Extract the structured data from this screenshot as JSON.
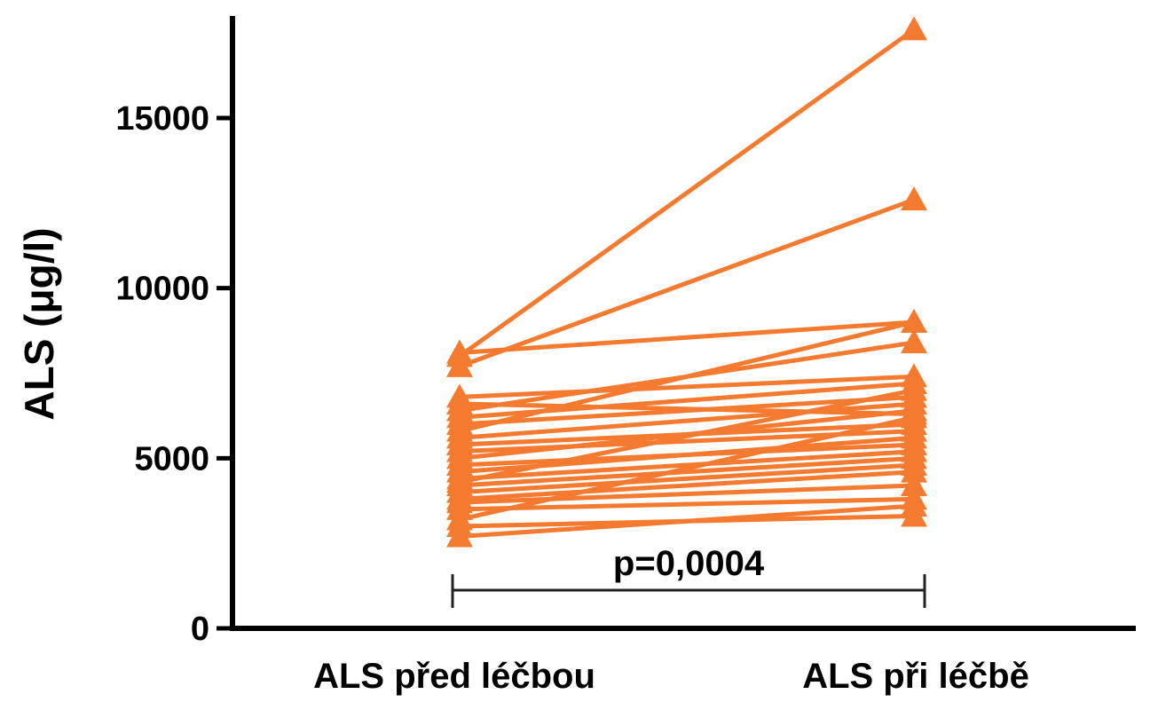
{
  "chart_data": {
    "type": "line",
    "title": "",
    "xlabel": "",
    "ylabel": "ALS (μg/l)",
    "ylim": [
      0,
      18000
    ],
    "yticks": [
      0,
      5000,
      10000,
      15000
    ],
    "ytick_labels": [
      "0",
      "5000",
      "10000",
      "15000"
    ],
    "grid": false,
    "categories": [
      "ALS před léčbou",
      "ALS při léčbě"
    ],
    "color": "#f47a30",
    "marker": "triangle",
    "pairs": [
      [
        8000,
        17600
      ],
      [
        7700,
        12600
      ],
      [
        8100,
        9000
      ],
      [
        6800,
        7400
      ],
      [
        6600,
        6300
      ],
      [
        6400,
        8400
      ],
      [
        6200,
        7200
      ],
      [
        6000,
        6800
      ],
      [
        5800,
        9000
      ],
      [
        5600,
        6600
      ],
      [
        5400,
        6000
      ],
      [
        5200,
        5800
      ],
      [
        5000,
        6400
      ],
      [
        4800,
        5400
      ],
      [
        4600,
        5600
      ],
      [
        4400,
        5200
      ],
      [
        4300,
        7000
      ],
      [
        4200,
        5000
      ],
      [
        4000,
        4800
      ],
      [
        3800,
        4600
      ],
      [
        3700,
        4200
      ],
      [
        3500,
        3800
      ],
      [
        3200,
        6200
      ],
      [
        3000,
        3300
      ],
      [
        2700,
        3600
      ]
    ],
    "annotation": {
      "text": "p=0,0004"
    }
  }
}
